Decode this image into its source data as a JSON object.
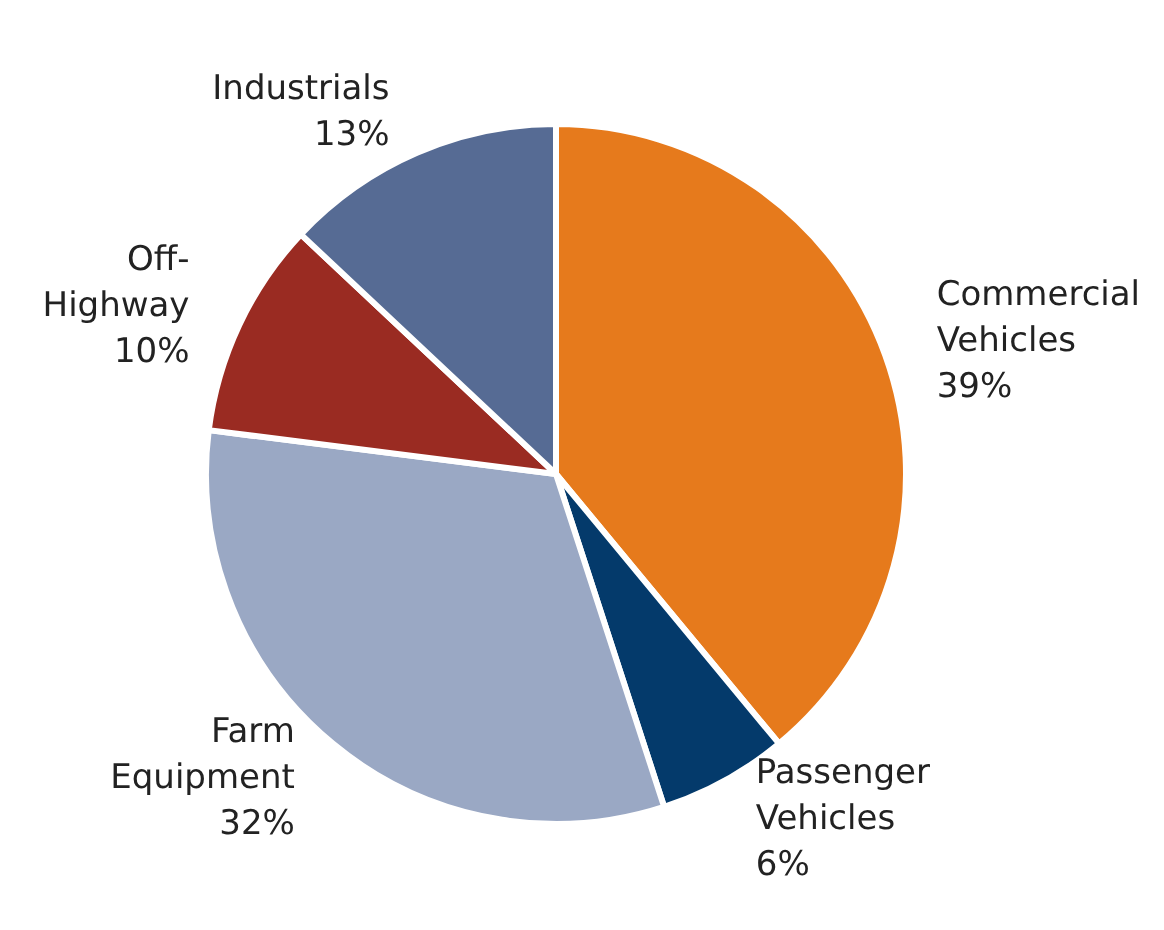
{
  "chart_data": {
    "type": "pie",
    "categories": [
      "Commercial Vehicles",
      "Passenger Vehicles",
      "Farm Equipment",
      "Off-Highway",
      "Industrials"
    ],
    "values": [
      39,
      6,
      32,
      10,
      13
    ],
    "value_labels": [
      "39%",
      "6%",
      "32%",
      "10%",
      "13%"
    ],
    "colors": [
      "#e67a1c",
      "#043a6b",
      "#9aa8c4",
      "#9a2b22",
      "#566b94"
    ],
    "legend": false
  }
}
